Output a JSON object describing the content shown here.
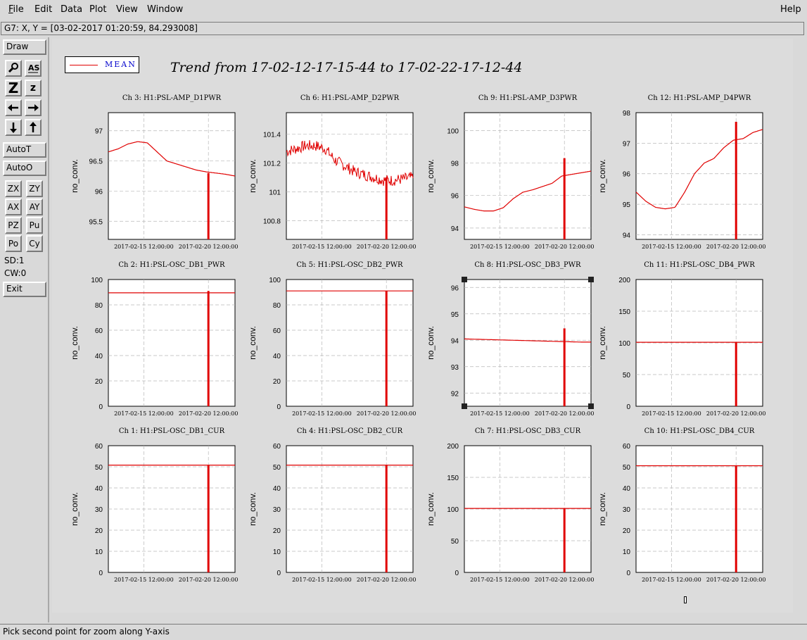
{
  "menu": {
    "file": "File",
    "edit": "Edit",
    "data": "Data",
    "plot": "Plot",
    "view": "View",
    "window": "Window",
    "help": "Help"
  },
  "status_line": "G7: X, Y = [03-02-2017 01:20:59, 84.293008]",
  "toolbar": {
    "draw": "Draw",
    "auto_t": "AutoT",
    "auto_o": "AutoO",
    "zx": "ZX",
    "zy": "ZY",
    "ax": "AX",
    "ay": "AY",
    "pz": "PZ",
    "pu": "Pu",
    "po": "Po",
    "cy": "Cy",
    "sd": "SD:1",
    "cw": "CW:0",
    "exit": "Exit",
    "icons": [
      "magnify-icon",
      "text-as-icon",
      "zoom-in-z-icon",
      "zoom-out-z-icon",
      "arrow-left-icon",
      "arrow-right-icon",
      "arrow-down-icon",
      "arrow-up-icon"
    ],
    "icon_labels": {
      "as": "AS",
      "z_big": "Z",
      "z_small": "z"
    }
  },
  "legend": {
    "label": "MEAN",
    "color": "#e00000"
  },
  "title": "Trend from 17-02-12-17-15-44 to 17-02-22-17-12-44",
  "bottom_status": "Pick second point for zoom along Y-axis",
  "colors": {
    "trace": "#e00000",
    "grid": "#b8b8b8",
    "background": "#d9d9d9"
  },
  "chart_data": [
    {
      "type": "line",
      "title": "Ch 3: H1:PSL-AMP_D1PWR",
      "ylabel": "no_conv.",
      "ylim": [
        95.2,
        97.3
      ],
      "yticks": [
        95.5,
        96,
        96.5,
        97
      ],
      "ytick_labels": [
        "95.5",
        "96",
        "96.5",
        "97"
      ],
      "xticks": [
        "2017-02-15 12:00:00",
        "2017-02-20 12:00:00"
      ],
      "series": [
        {
          "values": [
            96.65,
            96.7,
            96.78,
            96.82,
            96.8,
            96.65,
            96.5,
            96.45,
            96.4,
            96.35,
            96.32,
            96.3,
            96.28,
            96.25
          ]
        }
      ],
      "spike": {
        "x": 0.79,
        "bottom": 95.2,
        "top": 96.3
      }
    },
    {
      "type": "line",
      "title": "Ch 6: H1:PSL-AMP_D2PWR",
      "ylabel": "no_conv.",
      "ylim": [
        100.67,
        101.55
      ],
      "yticks": [
        100.8,
        101,
        101.2,
        101.4
      ],
      "ytick_labels": [
        "100.8",
        "101",
        "101.2",
        "101.4"
      ],
      "xticks": [
        "2017-02-15 12:00:00",
        "2017-02-20 12:00:00"
      ],
      "series": [
        {
          "values": [
            101.28,
            101.3,
            101.32,
            101.32,
            101.3,
            101.22,
            101.18,
            101.14,
            101.12,
            101.1,
            101.08,
            101.08,
            101.09,
            101.1
          ],
          "noise": 0.04
        }
      ],
      "spike": {
        "x": 0.79,
        "bottom": 100.67,
        "top": 101.1
      }
    },
    {
      "type": "line",
      "title": "Ch 9: H1:PSL-AMP_D3PWR",
      "ylabel": "no_conv.",
      "ylim": [
        93.3,
        101.1
      ],
      "yticks": [
        94,
        96,
        98,
        100
      ],
      "ytick_labels": [
        "94",
        "96",
        "98",
        "100"
      ],
      "xticks": [
        "2017-02-15 12:00:00",
        "2017-02-20 12:00:00"
      ],
      "series": [
        {
          "values": [
            95.3,
            95.15,
            95.05,
            95.05,
            95.25,
            95.8,
            96.2,
            96.35,
            96.55,
            96.75,
            97.2,
            97.3,
            97.4,
            97.5
          ]
        }
      ],
      "spike": {
        "x": 0.79,
        "bottom": 93.3,
        "top": 98.3
      }
    },
    {
      "type": "line",
      "title": "Ch 12: H1:PSL-AMP_D4PWR",
      "ylabel": "no_conv.",
      "ylim": [
        93.85,
        98.0
      ],
      "yticks": [
        94,
        95,
        96,
        97,
        98
      ],
      "ytick_labels": [
        "94",
        "95",
        "96",
        "97",
        "98"
      ],
      "xticks": [
        "2017-02-15 12:00:00",
        "2017-02-20 12:00:00"
      ],
      "series": [
        {
          "values": [
            95.4,
            95.1,
            94.9,
            94.85,
            94.9,
            95.4,
            96.0,
            96.35,
            96.5,
            96.85,
            97.1,
            97.15,
            97.35,
            97.45
          ]
        }
      ],
      "spike": {
        "x": 0.79,
        "bottom": 93.85,
        "top": 97.7
      }
    },
    {
      "type": "line",
      "title": "Ch 2: H1:PSL-OSC_DB1_PWR",
      "ylabel": "no_conv.",
      "ylim": [
        0,
        100
      ],
      "yticks": [
        0,
        20,
        40,
        60,
        80,
        100
      ],
      "ytick_labels": [
        "0",
        "20",
        "40",
        "60",
        "80",
        "100"
      ],
      "xticks": [
        "2017-02-15 12:00:00",
        "2017-02-20 12:00:00"
      ],
      "series": [
        {
          "values": [
            89.5,
            89.5,
            89.5,
            89.5,
            89.5,
            89.5,
            89.5,
            89.5,
            89.5,
            89.5,
            89.5,
            89.5,
            89.5,
            89.5
          ]
        }
      ],
      "spike": {
        "x": 0.79,
        "bottom": 0,
        "top": 91
      }
    },
    {
      "type": "line",
      "title": "Ch 5: H1:PSL-OSC_DB2_PWR",
      "ylabel": "no_conv.",
      "ylim": [
        0,
        100
      ],
      "yticks": [
        0,
        20,
        40,
        60,
        80,
        100
      ],
      "ytick_labels": [
        "0",
        "20",
        "40",
        "60",
        "80",
        "100"
      ],
      "xticks": [
        "2017-02-15 12:00:00",
        "2017-02-20 12:00:00"
      ],
      "series": [
        {
          "values": [
            91,
            91,
            91,
            91,
            91,
            91,
            91,
            91,
            91,
            91,
            91,
            91,
            91,
            91
          ]
        }
      ],
      "spike": {
        "x": 0.79,
        "bottom": 0,
        "top": 91
      }
    },
    {
      "type": "line",
      "title": "Ch 8: H1:PSL-OSC_DB3_PWR",
      "ylabel": "no_conv.",
      "ylim": [
        91.5,
        96.3
      ],
      "yticks": [
        92,
        93,
        94,
        95,
        96
      ],
      "ytick_labels": [
        "92",
        "93",
        "94",
        "95",
        "96"
      ],
      "xticks": [
        "2017-02-15 12:00:00",
        "2017-02-20 12:00:00"
      ],
      "series": [
        {
          "values": [
            94.05,
            94.04,
            94.03,
            94.02,
            94.01,
            94.0,
            93.99,
            93.98,
            93.97,
            93.96,
            93.95,
            93.94,
            93.93,
            93.93
          ]
        }
      ],
      "spike": {
        "x": 0.79,
        "bottom": 91.5,
        "top": 94.45
      },
      "selected": true
    },
    {
      "type": "line",
      "title": "Ch 11: H1:PSL-OSC_DB4_PWR",
      "ylabel": "no_conv.",
      "ylim": [
        0,
        200
      ],
      "yticks": [
        0,
        50,
        100,
        150,
        200
      ],
      "ytick_labels": [
        "0",
        "50",
        "100",
        "150",
        "200"
      ],
      "xticks": [
        "2017-02-15 12:00:00",
        "2017-02-20 12:00:00"
      ],
      "series": [
        {
          "values": [
            101,
            101,
            101,
            101,
            101,
            101,
            101,
            101,
            101,
            101,
            101,
            101,
            101,
            101
          ]
        }
      ],
      "spike": {
        "x": 0.79,
        "bottom": 0,
        "top": 101
      }
    },
    {
      "type": "line",
      "title": "Ch 1: H1:PSL-OSC_DB1_CUR",
      "ylabel": "no_conv.",
      "ylim": [
        0,
        60
      ],
      "yticks": [
        0,
        10,
        20,
        30,
        40,
        50,
        60
      ],
      "ytick_labels": [
        "0",
        "10",
        "20",
        "30",
        "40",
        "50",
        "60"
      ],
      "xticks": [
        "2017-02-15 12:00:00",
        "2017-02-20 12:00:00"
      ],
      "series": [
        {
          "values": [
            50.8,
            50.8,
            50.8,
            50.8,
            50.8,
            50.8,
            50.8,
            50.8,
            50.8,
            50.8,
            50.8,
            50.8,
            50.8,
            50.8
          ]
        }
      ],
      "spike": {
        "x": 0.79,
        "bottom": 0,
        "top": 50.8
      }
    },
    {
      "type": "line",
      "title": "Ch 4: H1:PSL-OSC_DB2_CUR",
      "ylabel": "no_conv.",
      "ylim": [
        0,
        60
      ],
      "yticks": [
        0,
        10,
        20,
        30,
        40,
        50,
        60
      ],
      "ytick_labels": [
        "0",
        "10",
        "20",
        "30",
        "40",
        "50",
        "60"
      ],
      "xticks": [
        "2017-02-15 12:00:00",
        "2017-02-20 12:00:00"
      ],
      "series": [
        {
          "values": [
            50.8,
            50.8,
            50.8,
            50.8,
            50.8,
            50.8,
            50.8,
            50.8,
            50.8,
            50.8,
            50.8,
            50.8,
            50.8,
            50.8
          ]
        }
      ],
      "spike": {
        "x": 0.79,
        "bottom": 0,
        "top": 50.8
      }
    },
    {
      "type": "line",
      "title": "Ch 7: H1:PSL-OSC_DB3_CUR",
      "ylabel": "no_conv.",
      "ylim": [
        0,
        200
      ],
      "yticks": [
        0,
        50,
        100,
        150,
        200
      ],
      "ytick_labels": [
        "0",
        "50",
        "100",
        "150",
        "200"
      ],
      "xticks": [
        "2017-02-15 12:00:00",
        "2017-02-20 12:00:00"
      ],
      "series": [
        {
          "values": [
            101,
            101,
            101,
            101,
            101,
            101,
            101,
            101,
            101,
            101,
            101,
            101,
            101,
            101
          ]
        }
      ],
      "spike": {
        "x": 0.79,
        "bottom": 0,
        "top": 101
      }
    },
    {
      "type": "line",
      "title": "Ch 10: H1:PSL-OSC_DB4_CUR",
      "ylabel": "no_conv.",
      "ylim": [
        0,
        60
      ],
      "yticks": [
        0,
        10,
        20,
        30,
        40,
        50,
        60
      ],
      "ytick_labels": [
        "0",
        "10",
        "20",
        "30",
        "40",
        "50",
        "60"
      ],
      "xticks": [
        "2017-02-15 12:00:00",
        "2017-02-20 12:00:00"
      ],
      "series": [
        {
          "values": [
            50.5,
            50.5,
            50.5,
            50.5,
            50.5,
            50.5,
            50.5,
            50.5,
            50.5,
            50.5,
            50.5,
            50.5,
            50.5,
            50.5
          ]
        }
      ],
      "spike": {
        "x": 0.79,
        "bottom": 0,
        "top": 50.5
      }
    }
  ]
}
